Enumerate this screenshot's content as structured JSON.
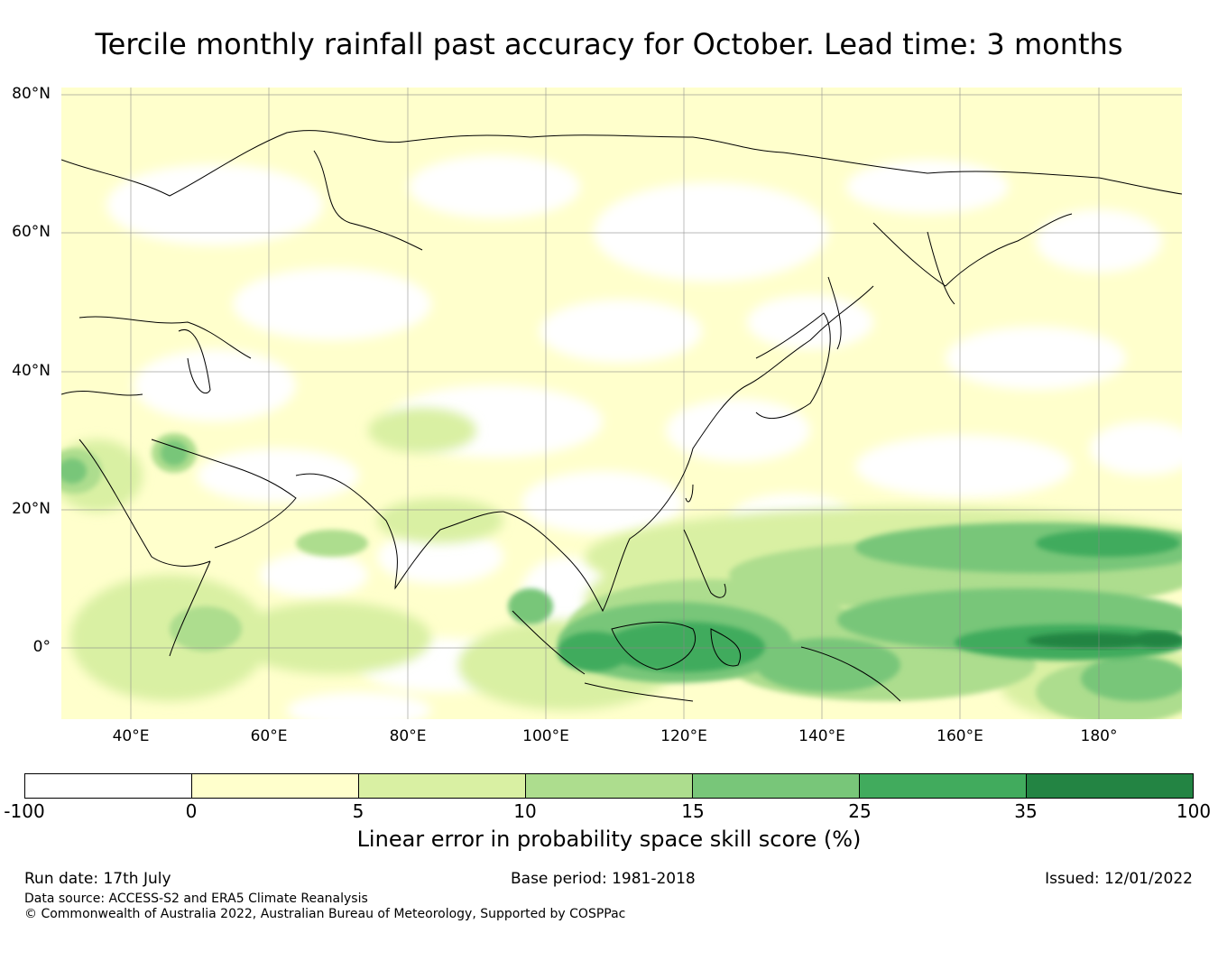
{
  "title": "Tercile monthly rainfall past accuracy for October. Lead time: 3 months",
  "map": {
    "region": "Asia and Western Pacific",
    "lat_labels": [
      "80°N",
      "60°N",
      "40°N",
      "20°N",
      "0°"
    ],
    "lon_labels": [
      "40°E",
      "60°E",
      "80°E",
      "100°E",
      "120°E",
      "140°E",
      "160°E",
      "180°"
    ]
  },
  "colorbar": {
    "ticks": [
      "-100",
      "0",
      "5",
      "10",
      "15",
      "25",
      "35",
      "100"
    ],
    "colors": [
      "#ffffff",
      "#ffffcc",
      "#d9f0a3",
      "#addd8e",
      "#78c679",
      "#41ab5d",
      "#238443"
    ],
    "label": "Linear error in probability space skill score (%)"
  },
  "footer": {
    "run_date": "Run date: 17th July",
    "base_period": "Base period: 1981-2018",
    "issued": "Issued: 12/01/2022",
    "data_source": "Data source: ACCESS-S2 and ERA5 Climate Reanalysis",
    "copyright": "© Commonwealth of Australia 2022, Australian Bureau of Meteorology, Supported by COSPPac"
  }
}
